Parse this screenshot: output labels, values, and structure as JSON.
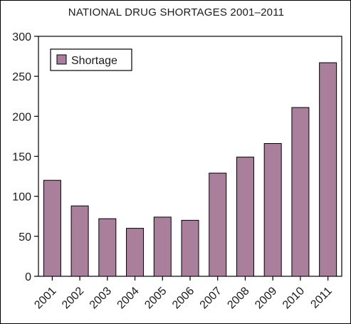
{
  "chart_data": {
    "type": "bar",
    "title": "NATIONAL DRUG SHORTAGES 2001–2011",
    "xlabel": "",
    "ylabel": "",
    "categories": [
      "2001",
      "2002",
      "2003",
      "2004",
      "2005",
      "2006",
      "2007",
      "2008",
      "2009",
      "2010",
      "2011"
    ],
    "series": [
      {
        "name": "Shortage",
        "values": [
          120,
          88,
          72,
          60,
          74,
          70,
          129,
          149,
          166,
          211,
          267
        ]
      }
    ],
    "ylim": [
      0,
      300
    ],
    "yticks": [
      "0",
      "50",
      "100",
      "150",
      "200",
      "250",
      "300"
    ],
    "grid": false,
    "legend_position": "top-left",
    "bar_color": "#a97f9c",
    "bar_stroke": "#000000"
  }
}
